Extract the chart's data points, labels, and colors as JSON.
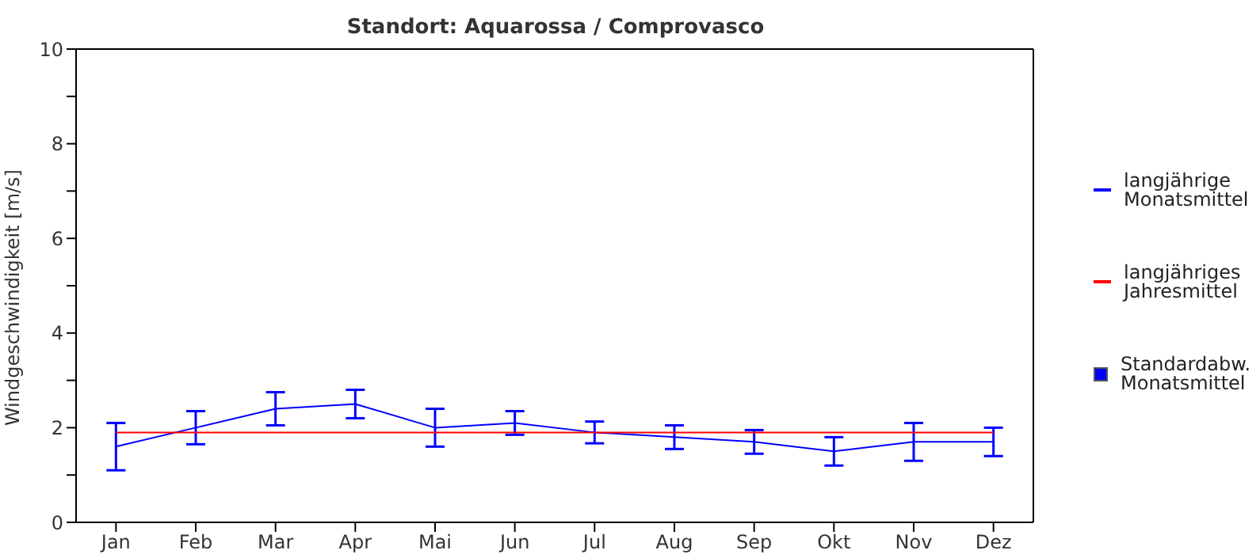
{
  "chart_data": {
    "type": "line",
    "title": "Standort: Aquarossa / Comprovasco",
    "ylabel": "Windgeschwindigkeit [m/s]",
    "categories": [
      "Jan",
      "Feb",
      "Mar",
      "Apr",
      "Mai",
      "Jun",
      "Jul",
      "Aug",
      "Sep",
      "Okt",
      "Nov",
      "Dez"
    ],
    "series": [
      {
        "name": "langjährige Monatsmittel",
        "color": "#0000ff",
        "values": [
          1.6,
          2.0,
          2.4,
          2.5,
          2.0,
          2.1,
          1.9,
          1.8,
          1.7,
          1.5,
          1.7,
          1.7
        ],
        "errors": [
          0.5,
          0.35,
          0.35,
          0.3,
          0.4,
          0.25,
          0.23,
          0.25,
          0.25,
          0.3,
          0.4,
          0.3
        ]
      },
      {
        "name": "langjähriges Jahresmittel",
        "color": "#ff0000",
        "values": [
          1.9,
          1.9,
          1.9,
          1.9,
          1.9,
          1.9,
          1.9,
          1.9,
          1.9,
          1.9,
          1.9,
          1.9
        ]
      }
    ],
    "annotations": [
      "Standardabw. Monatsmittel"
    ],
    "ylim": [
      0,
      10
    ],
    "yticks": [
      0,
      {
        "value": 1,
        "label": null
      },
      2,
      {
        "value": 3,
        "label": null
      },
      4,
      {
        "value": 5,
        "label": null
      },
      6,
      {
        "value": 7,
        "label": null
      },
      8,
      {
        "value": 9,
        "label": null
      },
      10
    ],
    "grid": false,
    "legend": "right",
    "marker": "none",
    "line_style": "solid"
  }
}
